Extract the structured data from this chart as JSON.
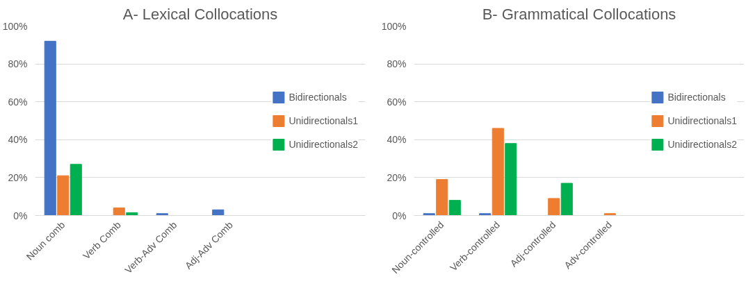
{
  "chart_data": [
    {
      "type": "bar",
      "title": "A- Lexical Collocations",
      "categories": [
        "Noun comb",
        "Verb Comb",
        "Verb-Adv Comb",
        "Adj-Adv Comb"
      ],
      "series": [
        {
          "name": "Bidirectionals",
          "color": "#4472c4",
          "values": [
            92,
            0,
            1,
            3
          ]
        },
        {
          "name": "Unidirectionals1",
          "color": "#ed7d31",
          "values": [
            21,
            4,
            0,
            0
          ]
        },
        {
          "name": "Unidirectionals2",
          "color": "#00b050",
          "values": [
            27,
            1.5,
            0,
            0
          ]
        }
      ],
      "ylim": [
        0,
        100
      ],
      "yticks": [
        {
          "value": 0,
          "label": "0%"
        },
        {
          "value": 20,
          "label": "20%"
        },
        {
          "value": 40,
          "label": "40%"
        },
        {
          "value": 60,
          "label": "60%"
        },
        {
          "value": 80,
          "label": "80%"
        },
        {
          "value": 100,
          "label": "100%"
        }
      ],
      "grid": "y",
      "legend": "right"
    },
    {
      "type": "bar",
      "title": "B- Grammatical Collocations",
      "categories": [
        "Noun-controlled",
        "Verb-controlled",
        "Adj-controlled",
        "Adv-controlled"
      ],
      "series": [
        {
          "name": "Bidirectionals",
          "color": "#4472c4",
          "values": [
            1,
            1,
            0,
            0
          ]
        },
        {
          "name": "Unidirectionals1",
          "color": "#ed7d31",
          "values": [
            19,
            46,
            9,
            1
          ]
        },
        {
          "name": "Unidirectionals2",
          "color": "#00b050",
          "values": [
            8,
            38,
            17,
            0
          ]
        }
      ],
      "ylim": [
        0,
        100
      ],
      "yticks": [
        {
          "value": 0,
          "label": "0%"
        },
        {
          "value": 20,
          "label": "20%"
        },
        {
          "value": 40,
          "label": "40%"
        },
        {
          "value": 60,
          "label": "60%"
        },
        {
          "value": 80,
          "label": "80%"
        },
        {
          "value": 100,
          "label": "100%"
        }
      ],
      "grid": "y",
      "legend": "right"
    }
  ]
}
